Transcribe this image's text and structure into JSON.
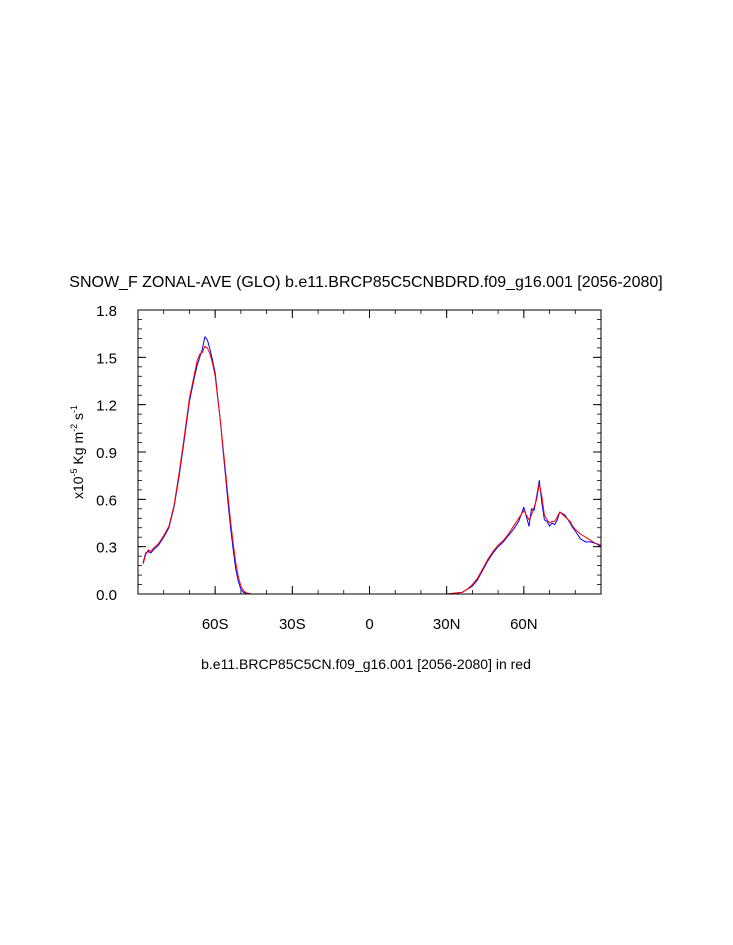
{
  "chart_data": {
    "type": "line",
    "title": "SNOW_F ZONAL-AVE (GLO) b.e11.BRCP85C5CNBDRD.f09_g16.001 [2056-2080]",
    "subtitle": "b.e11.BRCP85C5CN.f09_g16.001 [2056-2080] in red",
    "ylabel": {
      "prefix": "x10",
      "exp1": "-5",
      "mid": " Kg m",
      "exp2": "-2",
      "mid2": " s",
      "exp3": "-1"
    },
    "xlim": [
      -90,
      90
    ],
    "ylim": [
      0,
      1.8
    ],
    "x_ticks": [
      -60,
      -30,
      0,
      30,
      60
    ],
    "x_tick_labels": [
      "60S",
      "30S",
      "0",
      "30N",
      "60N"
    ],
    "y_ticks": [
      0,
      0.3,
      0.6,
      0.9,
      1.2,
      1.5,
      1.8
    ],
    "y_tick_labels": [
      "0.0",
      "0.3",
      "0.6",
      "0.9",
      "1.2",
      "1.5",
      "1.8"
    ],
    "series": [
      {
        "color": "#0000ff",
        "x": [
          -88,
          -87,
          -86,
          -85,
          -84,
          -82,
          -80,
          -78,
          -76,
          -74,
          -72,
          -70,
          -68,
          -67,
          -66,
          -65,
          -64,
          -63,
          -62,
          -61,
          -60,
          -59,
          -58,
          -57,
          -56,
          -55,
          -54,
          -53,
          -52,
          -51,
          -50,
          -49,
          -48,
          -46,
          -44,
          -40,
          -30,
          -20,
          -10,
          0,
          10,
          20,
          30,
          36,
          38,
          40,
          42,
          44,
          46,
          48,
          50,
          52,
          54,
          56,
          58,
          60,
          62,
          63,
          64,
          65,
          66,
          67,
          68,
          69,
          70,
          71,
          72,
          73,
          74,
          76,
          78,
          79,
          80,
          82,
          84,
          86,
          88,
          90
        ],
        "y": [
          0.2,
          0.26,
          0.27,
          0.26,
          0.28,
          0.31,
          0.36,
          0.42,
          0.55,
          0.75,
          0.98,
          1.22,
          1.38,
          1.45,
          1.5,
          1.55,
          1.63,
          1.61,
          1.55,
          1.48,
          1.4,
          1.25,
          1.1,
          0.92,
          0.75,
          0.58,
          0.42,
          0.28,
          0.16,
          0.08,
          0.03,
          0.01,
          0.005,
          0,
          0,
          0,
          0,
          0,
          0,
          0,
          0,
          0,
          0.0,
          0.01,
          0.03,
          0.05,
          0.09,
          0.15,
          0.21,
          0.26,
          0.3,
          0.33,
          0.37,
          0.41,
          0.46,
          0.55,
          0.43,
          0.54,
          0.53,
          0.62,
          0.72,
          0.58,
          0.47,
          0.46,
          0.43,
          0.45,
          0.44,
          0.47,
          0.52,
          0.5,
          0.45,
          0.42,
          0.4,
          0.35,
          0.33,
          0.33,
          0.32,
          0.3
        ]
      },
      {
        "color": "#ff0000",
        "x": [
          -88,
          -87,
          -86,
          -85,
          -84,
          -82,
          -80,
          -78,
          -76,
          -74,
          -72,
          -70,
          -68,
          -67,
          -66,
          -65,
          -64,
          -63,
          -62,
          -61,
          -60,
          -59,
          -58,
          -57,
          -56,
          -55,
          -54,
          -53,
          -52,
          -51,
          -50,
          -49,
          -48,
          -46,
          -44,
          -40,
          -30,
          -20,
          -10,
          0,
          10,
          20,
          30,
          36,
          38,
          40,
          42,
          44,
          46,
          48,
          50,
          52,
          54,
          56,
          58,
          60,
          62,
          63,
          64,
          65,
          66,
          67,
          68,
          69,
          70,
          71,
          72,
          73,
          74,
          76,
          78,
          79,
          80,
          82,
          84,
          86,
          88,
          90
        ],
        "y": [
          0.19,
          0.25,
          0.28,
          0.27,
          0.29,
          0.32,
          0.37,
          0.43,
          0.56,
          0.77,
          1.0,
          1.24,
          1.4,
          1.48,
          1.52,
          1.53,
          1.57,
          1.56,
          1.52,
          1.46,
          1.38,
          1.24,
          1.1,
          0.94,
          0.78,
          0.62,
          0.46,
          0.32,
          0.2,
          0.11,
          0.05,
          0.02,
          0.008,
          0,
          0,
          0,
          0,
          0,
          0,
          0,
          0,
          0,
          0.0,
          0.01,
          0.03,
          0.06,
          0.1,
          0.16,
          0.22,
          0.27,
          0.31,
          0.34,
          0.38,
          0.43,
          0.48,
          0.53,
          0.47,
          0.5,
          0.55,
          0.6,
          0.7,
          0.62,
          0.5,
          0.47,
          0.45,
          0.46,
          0.46,
          0.49,
          0.52,
          0.49,
          0.46,
          0.43,
          0.41,
          0.38,
          0.36,
          0.34,
          0.32,
          0.31
        ]
      }
    ]
  }
}
